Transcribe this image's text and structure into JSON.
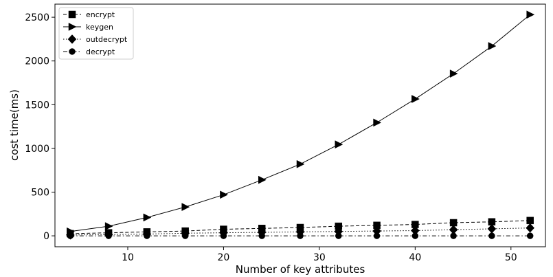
{
  "chart_data": {
    "type": "line",
    "title": "",
    "xlabel": "Number of key attributes",
    "ylabel": "cost time(ms)",
    "xlim": [
      2.4,
      53.6
    ],
    "ylim": [
      -125,
      2650
    ],
    "xticks": [
      10,
      20,
      30,
      40,
      50
    ],
    "yticks": [
      0,
      500,
      1000,
      1500,
      2000,
      2500
    ],
    "grid": false,
    "legend_position": "top-left",
    "x": [
      4,
      8,
      12,
      16,
      20,
      24,
      28,
      32,
      36,
      40,
      44,
      48,
      52
    ],
    "series": [
      {
        "name": "encrypt",
        "marker": "square",
        "linestyle": "dashed",
        "values": [
          25,
          35,
          45,
          55,
          75,
          85,
          95,
          110,
          120,
          130,
          150,
          160,
          175
        ]
      },
      {
        "name": "keygen",
        "marker": "triangle-right",
        "linestyle": "solid",
        "values": [
          50,
          110,
          210,
          330,
          470,
          640,
          820,
          1045,
          1295,
          1565,
          1855,
          2170,
          2530
        ]
      },
      {
        "name": "outdecrypt",
        "marker": "diamond",
        "linestyle": "dotted",
        "values": [
          10,
          15,
          20,
          30,
          35,
          40,
          45,
          50,
          55,
          60,
          70,
          80,
          90
        ]
      },
      {
        "name": "decrypt",
        "marker": "circle",
        "linestyle": "dashdot",
        "values": [
          0,
          0,
          0,
          0,
          0,
          0,
          0,
          0,
          0,
          0,
          0,
          0,
          0
        ]
      }
    ]
  }
}
